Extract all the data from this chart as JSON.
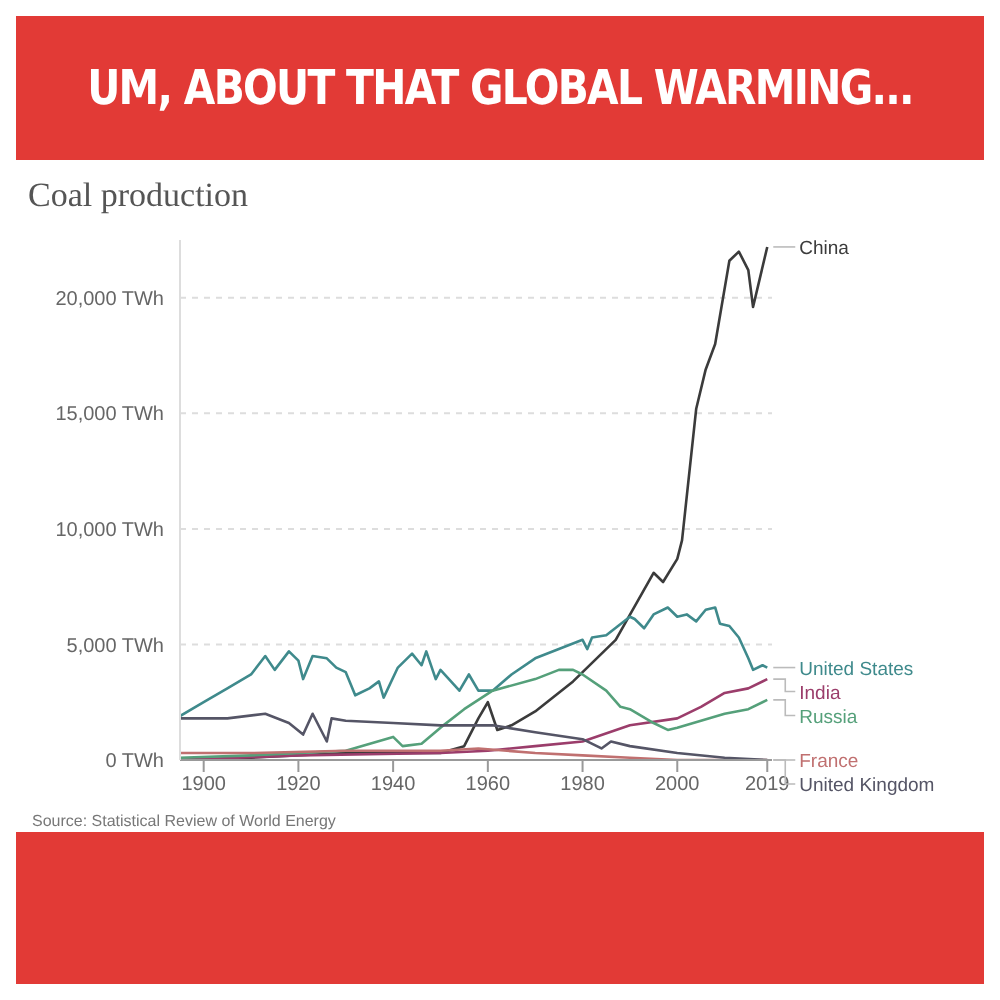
{
  "chart_data": {
    "type": "line",
    "title": "UM, ABOUT THAT GLOBAL WARMING...",
    "subtitle": "Coal production",
    "annotations": [
      "Source: Statistical Review of World Energy"
    ],
    "xlim": [
      1895,
      2020
    ],
    "xticks": [
      1900,
      1920,
      1940,
      1960,
      1980,
      2000,
      2019
    ],
    "ylim": [
      0,
      22500
    ],
    "yticks": [
      {
        "value": 0,
        "label": "0 TWh"
      },
      {
        "value": 5000,
        "label": "5,000 TWh"
      },
      {
        "value": 10000,
        "label": "10,000 TWh"
      },
      {
        "value": 15000,
        "label": "15,000 TWh"
      },
      {
        "value": 20000,
        "label": "20,000 TWh"
      }
    ],
    "grid": "y",
    "marker": "none",
    "line_style": "solid",
    "series": [
      {
        "name": "China",
        "color": "#3b3b3b",
        "x": [
          1895,
          1910,
          1930,
          1945,
          1950,
          1955,
          1958,
          1960,
          1962,
          1965,
          1970,
          1978,
          1987,
          1995,
          1997,
          2000,
          2001,
          2004,
          2006,
          2008,
          2011,
          2013,
          2015,
          2016,
          2019
        ],
        "values": [
          0,
          100,
          300,
          300,
          300,
          600,
          1800,
          2500,
          1300,
          1500,
          2100,
          3400,
          5200,
          8100,
          7700,
          8700,
          9500,
          15200,
          16900,
          18000,
          21600,
          22000,
          21200,
          19600,
          22200
        ]
      },
      {
        "name": "United States",
        "color": "#3f8a8c",
        "x": [
          1895,
          1900,
          1905,
          1910,
          1913,
          1915,
          1918,
          1920,
          1921,
          1923,
          1926,
          1928,
          1930,
          1932,
          1935,
          1937,
          1938,
          1941,
          1944,
          1946,
          1947,
          1949,
          1950,
          1954,
          1956,
          1958,
          1961,
          1965,
          1970,
          1975,
          1980,
          1981,
          1982,
          1985,
          1990,
          1991,
          1993,
          1995,
          1998,
          2000,
          2002,
          2004,
          2006,
          2008,
          2009,
          2011,
          2013,
          2015,
          2016,
          2018,
          2019
        ],
        "values": [
          1900,
          2500,
          3100,
          3700,
          4500,
          3900,
          4700,
          4300,
          3500,
          4500,
          4400,
          4000,
          3800,
          2800,
          3100,
          3400,
          2700,
          4000,
          4600,
          4100,
          4700,
          3500,
          3900,
          3000,
          3700,
          3000,
          3000,
          3700,
          4400,
          4800,
          5200,
          4800,
          5300,
          5400,
          6200,
          6100,
          5700,
          6300,
          6600,
          6200,
          6300,
          6000,
          6500,
          6600,
          5900,
          5800,
          5300,
          4400,
          3900,
          4100,
          4000
        ]
      },
      {
        "name": "India",
        "color": "#9b3d6b",
        "x": [
          1895,
          1920,
          1950,
          1960,
          1970,
          1980,
          1990,
          2000,
          2005,
          2010,
          2015,
          2019
        ],
        "values": [
          0,
          200,
          300,
          400,
          600,
          800,
          1500,
          1800,
          2300,
          2900,
          3100,
          3500
        ]
      },
      {
        "name": "Russia",
        "color": "#55a07a",
        "x": [
          1895,
          1910,
          1930,
          1940,
          1942,
          1946,
          1950,
          1955,
          1961,
          1970,
          1975,
          1978,
          1980,
          1985,
          1988,
          1990,
          1995,
          1998,
          2000,
          2005,
          2010,
          2015,
          2019
        ],
        "values": [
          100,
          200,
          400,
          1000,
          600,
          700,
          1400,
          2200,
          3000,
          3500,
          3900,
          3900,
          3700,
          3000,
          2300,
          2200,
          1600,
          1300,
          1400,
          1700,
          2000,
          2200,
          2600
        ]
      },
      {
        "name": "France",
        "color": "#c07070",
        "x": [
          1895,
          1910,
          1930,
          1950,
          1958,
          1970,
          1980,
          1990,
          2000,
          2005,
          2019
        ],
        "values": [
          300,
          300,
          400,
          400,
          500,
          300,
          200,
          100,
          0,
          0,
          0
        ]
      },
      {
        "name": "United Kingdom",
        "color": "#555566",
        "x": [
          1895,
          1905,
          1913,
          1918,
          1921,
          1923,
          1926,
          1927,
          1930,
          1940,
          1950,
          1955,
          1961,
          1970,
          1980,
          1984,
          1986,
          1990,
          2000,
          2010,
          2019
        ],
        "values": [
          1800,
          1800,
          2000,
          1600,
          1100,
          2000,
          800,
          1800,
          1700,
          1600,
          1500,
          1500,
          1500,
          1200,
          900,
          500,
          800,
          600,
          300,
          100,
          0
        ]
      }
    ]
  }
}
